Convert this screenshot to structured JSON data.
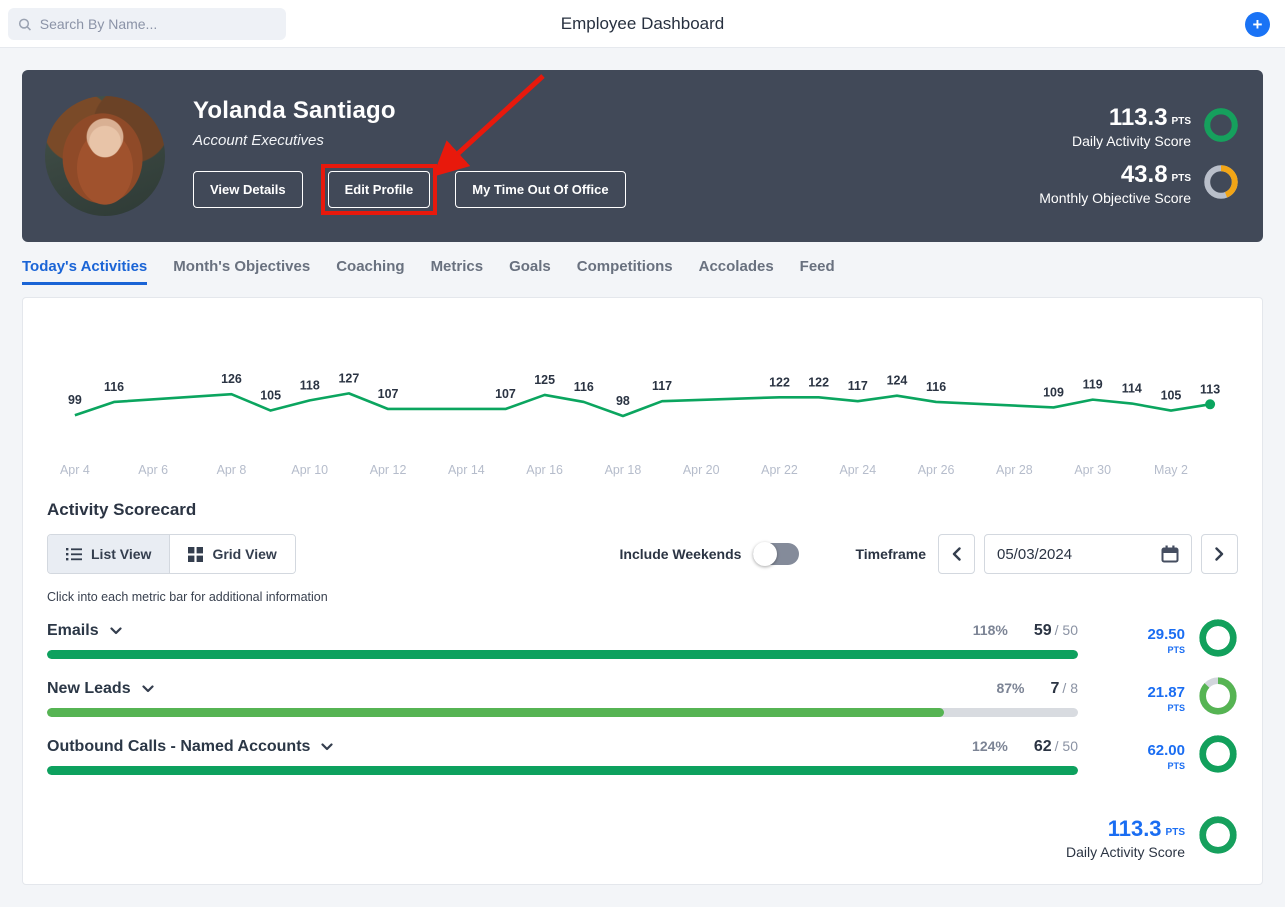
{
  "topbar": {
    "search_placeholder": "Search By Name...",
    "title": "Employee Dashboard",
    "add_label": "+"
  },
  "profile": {
    "name": "Yolanda Santiago",
    "role": "Account Executives",
    "buttons": {
      "view_details": "View Details",
      "edit_profile": "Edit Profile",
      "time_out": "My Time Out Of Office"
    },
    "scores": [
      {
        "value": "113.3",
        "unit": "PTS",
        "label": "Daily Activity Score",
        "ring_percent": 100,
        "ring_color": "#16a05d",
        "ring_track": "#16a05d"
      },
      {
        "value": "43.8",
        "unit": "PTS",
        "label": "Monthly Objective Score",
        "ring_percent": 44,
        "ring_color": "#f2a516",
        "ring_track": "#b9bfca"
      }
    ]
  },
  "tabs": [
    {
      "label": "Today's Activities",
      "active": true
    },
    {
      "label": "Month's Objectives",
      "active": false
    },
    {
      "label": "Coaching",
      "active": false
    },
    {
      "label": "Metrics",
      "active": false
    },
    {
      "label": "Goals",
      "active": false
    },
    {
      "label": "Competitions",
      "active": false
    },
    {
      "label": "Accolades",
      "active": false
    },
    {
      "label": "Feed",
      "active": false
    }
  ],
  "chart_data": {
    "type": "line",
    "title": "Daily Activity Score trend",
    "line_color": "#0ba55f",
    "label_color": "#2b3443",
    "tick_color": "#b5bccb",
    "grid": false,
    "legend": "none",
    "weekends_excluded": true,
    "points": [
      {
        "date": "Apr 4",
        "day": 0,
        "value": 99
      },
      {
        "date": "Apr 5",
        "day": 1,
        "value": 116
      },
      {
        "date": "Apr 8",
        "day": 4,
        "value": 126
      },
      {
        "date": "Apr 9",
        "day": 5,
        "value": 105
      },
      {
        "date": "Apr 10",
        "day": 6,
        "value": 118
      },
      {
        "date": "Apr 11",
        "day": 7,
        "value": 127
      },
      {
        "date": "Apr 12",
        "day": 8,
        "value": 107
      },
      {
        "date": "Apr 15",
        "day": 11,
        "value": 107
      },
      {
        "date": "Apr 16",
        "day": 12,
        "value": 125
      },
      {
        "date": "Apr 17",
        "day": 13,
        "value": 116
      },
      {
        "date": "Apr 18",
        "day": 14,
        "value": 98
      },
      {
        "date": "Apr 19",
        "day": 15,
        "value": 117
      },
      {
        "date": "Apr 22",
        "day": 18,
        "value": 122
      },
      {
        "date": "Apr 23",
        "day": 19,
        "value": 122
      },
      {
        "date": "Apr 24",
        "day": 20,
        "value": 117
      },
      {
        "date": "Apr 25",
        "day": 21,
        "value": 124
      },
      {
        "date": "Apr 26",
        "day": 22,
        "value": 116
      },
      {
        "date": "Apr 29",
        "day": 25,
        "value": 109
      },
      {
        "date": "Apr 30",
        "day": 26,
        "value": 119
      },
      {
        "date": "May 1",
        "day": 27,
        "value": 114
      },
      {
        "date": "May 2",
        "day": 28,
        "value": 105
      },
      {
        "date": "May 3",
        "day": 29,
        "value": 113
      }
    ],
    "x_ticks": [
      {
        "label": "Apr 4",
        "day": 0
      },
      {
        "label": "Apr 6",
        "day": 2
      },
      {
        "label": "Apr 8",
        "day": 4
      },
      {
        "label": "Apr 10",
        "day": 6
      },
      {
        "label": "Apr 12",
        "day": 8
      },
      {
        "label": "Apr 14",
        "day": 10
      },
      {
        "label": "Apr 16",
        "day": 12
      },
      {
        "label": "Apr 18",
        "day": 14
      },
      {
        "label": "Apr 20",
        "day": 16
      },
      {
        "label": "Apr 22",
        "day": 18
      },
      {
        "label": "Apr 24",
        "day": 20
      },
      {
        "label": "Apr 26",
        "day": 22
      },
      {
        "label": "Apr 28",
        "day": 24
      },
      {
        "label": "Apr 30",
        "day": 26
      },
      {
        "label": "May 2",
        "day": 28
      }
    ]
  },
  "scorecard": {
    "heading": "Activity Scorecard",
    "view_toggle": {
      "list": "List View",
      "grid": "Grid View",
      "active": "list"
    },
    "include_weekends_label": "Include Weekends",
    "include_weekends_on": false,
    "timeframe_label": "Timeframe",
    "date_value": "05/03/2024",
    "hint": "Click into each metric bar for additional information",
    "metrics": [
      {
        "name": "Emails",
        "percent_label": "118%",
        "value": "59",
        "target": "/ 50",
        "points": "29.50",
        "unit": "PTS",
        "bar_percent": 100,
        "bar_color": "#0da15e",
        "ring_percent": 100,
        "ring_color": "#12a05c",
        "ring_track": "#12a05c"
      },
      {
        "name": "New Leads",
        "percent_label": "87%",
        "value": "7",
        "target": "/ 8",
        "points": "21.87",
        "unit": "PTS",
        "bar_percent": 87,
        "bar_color": "#56b453",
        "ring_percent": 87,
        "ring_color": "#56b453",
        "ring_track": "#d2d6dc"
      },
      {
        "name": "Outbound Calls - Named Accounts",
        "percent_label": "124%",
        "value": "62",
        "target": "/ 50",
        "points": "62.00",
        "unit": "PTS",
        "bar_percent": 100,
        "bar_color": "#0da15e",
        "ring_percent": 100,
        "ring_color": "#12a05c",
        "ring_track": "#12a05c"
      }
    ],
    "total": {
      "value": "113.3",
      "unit": "PTS",
      "label": "Daily Activity Score",
      "ring_percent": 100,
      "ring_color": "#16a05d",
      "ring_track": "#16a05d"
    }
  },
  "colors": {
    "accent_blue": "#1a64d6",
    "points_blue": "#1a6df2",
    "green": "#0da15e",
    "light_green": "#56b453",
    "orange": "#f2a516",
    "annotation_red": "#e8190c",
    "header_dark": "#414958"
  }
}
